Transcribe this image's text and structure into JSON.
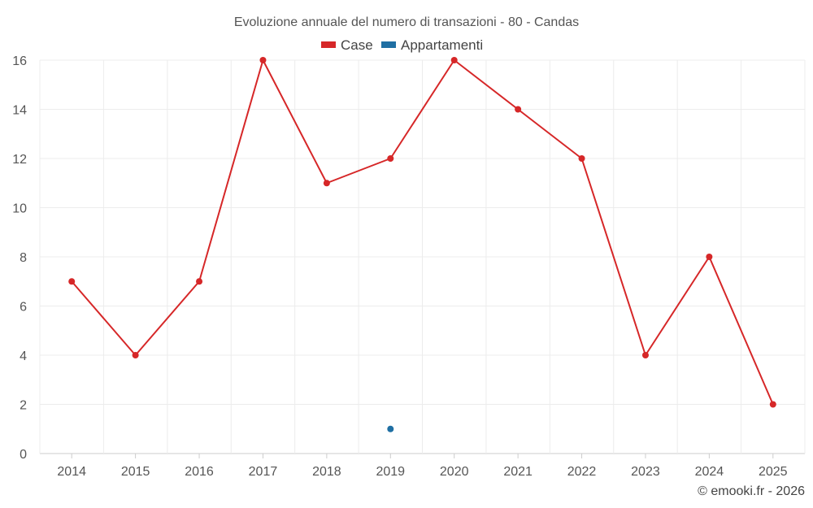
{
  "chart_data": {
    "type": "line",
    "title": "Evoluzione annuale del numero di transazioni - 80 - Candas",
    "categories": [
      "2014",
      "2015",
      "2016",
      "2017",
      "2018",
      "2019",
      "2020",
      "2021",
      "2022",
      "2023",
      "2024",
      "2025"
    ],
    "series": [
      {
        "name": "Case",
        "color": "#d62728",
        "values": [
          7,
          4,
          7,
          16,
          11,
          12,
          16,
          14,
          12,
          4,
          8,
          2
        ]
      },
      {
        "name": "Appartamenti",
        "color": "#1f6fa3",
        "values": [
          null,
          null,
          null,
          null,
          null,
          1,
          null,
          null,
          null,
          null,
          null,
          null
        ]
      }
    ],
    "ylim": [
      0,
      16
    ],
    "yticks": [
      0,
      2,
      4,
      6,
      8,
      10,
      12,
      14,
      16
    ],
    "legend_position": "top-center",
    "grid": true,
    "credit": "© emooki.fr - 2026"
  }
}
